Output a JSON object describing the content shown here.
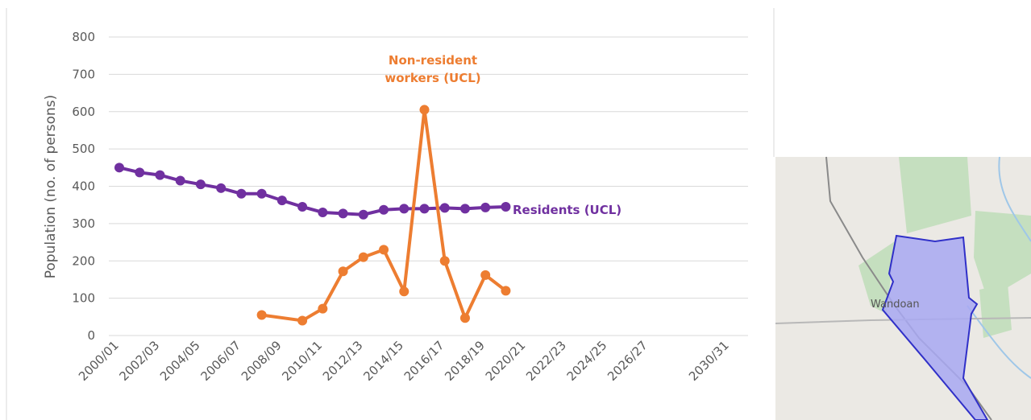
{
  "chart_data": {
    "type": "line",
    "y_label": "Population (no. of persons)",
    "categories": [
      "2000/01",
      null,
      "2002/03",
      null,
      "2004/05",
      null,
      "2006/07",
      null,
      "2008/09",
      null,
      "2010/11",
      null,
      "2012/13",
      null,
      "2014/15",
      null,
      "2016/17",
      null,
      "2018/19",
      null,
      "2020/21",
      null,
      "2022/23",
      null,
      "2024/25",
      null,
      "2026/27",
      null,
      null,
      null,
      "2030/31"
    ],
    "ylim": [
      0,
      800
    ],
    "yticks": [
      0,
      100,
      200,
      300,
      400,
      500,
      600,
      700,
      800
    ],
    "grid": true,
    "connect_gaps": true,
    "series": [
      {
        "name": "Residents (UCL)",
        "color": "#7030a0",
        "values": [
          450,
          437,
          430,
          415,
          405,
          395,
          380,
          380,
          362,
          345,
          330,
          327,
          324,
          337,
          340,
          340,
          342,
          340,
          343,
          345,
          null,
          null,
          null,
          null,
          null,
          null,
          null,
          null,
          null,
          null,
          null
        ]
      },
      {
        "name": "Non-resident workers (UCL)",
        "color": "#ed7d31",
        "values": [
          null,
          null,
          null,
          null,
          null,
          null,
          null,
          55,
          null,
          40,
          72,
          172,
          210,
          230,
          118,
          605,
          200,
          47,
          162,
          120,
          null,
          null,
          null,
          null,
          null,
          null,
          null,
          null,
          null,
          null,
          null
        ]
      }
    ]
  },
  "map": {
    "label": "Wandoan"
  }
}
